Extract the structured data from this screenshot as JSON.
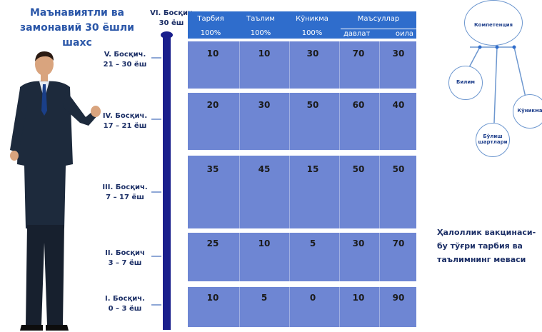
{
  "title": "Маънавиятли ва замонавий 30 ёшли шахс",
  "top_stage": {
    "name": "VI. Босқич",
    "range": "30 ёш"
  },
  "headers": {
    "tarbiya": {
      "name": "Тарбия",
      "pct": "100%"
    },
    "talim": {
      "name": "Таълим",
      "pct": "100%"
    },
    "konikma": {
      "name": "Кўникма",
      "pct": "100%"
    },
    "masullar": {
      "name": "Маъсуллар",
      "sub1": "давлат",
      "sub2": "оила"
    }
  },
  "stages": [
    {
      "name": "V. Босқич.",
      "range": "21 – 30 ёш",
      "values": [
        "10",
        "10",
        "30",
        "70",
        "30"
      ]
    },
    {
      "name": "IV. Босқич.",
      "range": "17 – 21 ёш",
      "values": [
        "20",
        "30",
        "50",
        "60",
        "40"
      ]
    },
    {
      "name": "III. Босқич.",
      "range": "7 – 17 ёш",
      "values": [
        "35",
        "45",
        "15",
        "50",
        "50"
      ]
    },
    {
      "name": "II. Босқич",
      "range": "3 – 7 ёш",
      "values": [
        "25",
        "10",
        "5",
        "30",
        "70"
      ]
    },
    {
      "name": "I. Босқич.",
      "range": "0 – 3 ёш",
      "values": [
        "10",
        "5",
        "0",
        "10",
        "90"
      ]
    }
  ],
  "diagram": {
    "center": "Компетенция",
    "left": "Билим",
    "right": "Кўникма",
    "bottom": "Бўлиш шартлари"
  },
  "caption": "Ҳалоллик вакцинаси- бу тўғри тарбия ва таълимнинг меваси",
  "colors": {
    "header": "#2f6dcc",
    "band": "#6e86d3",
    "axis": "#1a1f8c",
    "title": "#2a56a8"
  }
}
